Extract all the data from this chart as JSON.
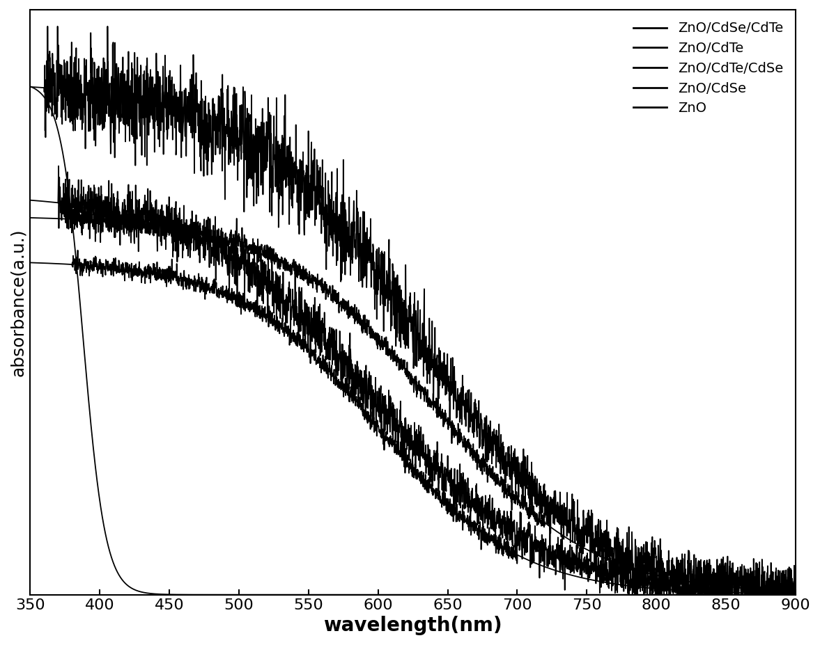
{
  "title": "",
  "xlabel": "wavelength(nm)",
  "ylabel": "absorbance(a.u.)",
  "xlim": [
    350,
    900
  ],
  "ylim": [
    0,
    1.05
  ],
  "xticks": [
    350,
    400,
    450,
    500,
    550,
    600,
    650,
    700,
    750,
    800,
    850,
    900
  ],
  "legend_labels": [
    "ZnO/CdSe/CdTe",
    "ZnO/CdTe",
    "ZnO/CdSe",
    "ZnO/CdTe/CdSe",
    "ZnO"
  ],
  "line_color": "#000000",
  "line_width": 1.3,
  "background_color": "#ffffff",
  "xlabel_fontsize": 20,
  "ylabel_fontsize": 18,
  "tick_fontsize": 16,
  "legend_fontsize": 14
}
